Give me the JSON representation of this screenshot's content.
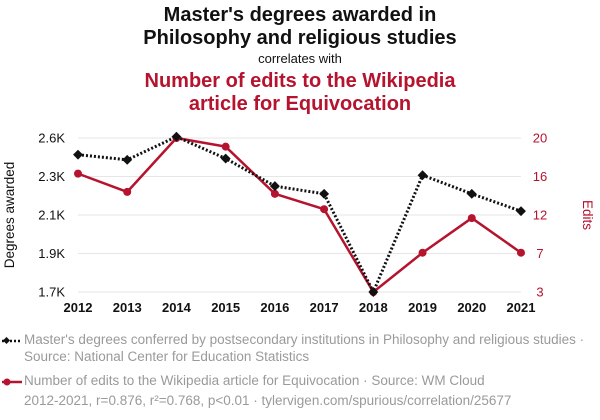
{
  "header": {
    "title_line1": "Master's degrees awarded in",
    "title_line2": "Philosophy and religious studies",
    "correlates": "correlates with",
    "title2_line1": "Number of edits to the Wikipedia",
    "title2_line2": "article for Equivocation"
  },
  "legend": {
    "series1": "Master's degrees conferred by postsecondary institutions in Philosophy and religious studies · Source: National Center for Education Statistics",
    "series2": "Number of edits to the Wikipedia article for Equivocation · Source: WM Cloud"
  },
  "footer": "2012-2021, r=0.876, r²=0.768, p<0.01 · tylervigen.com/spurious/correlation/25677",
  "colors": {
    "series1": "#111111",
    "series2": "#b5132e"
  },
  "chart_data": {
    "type": "line",
    "x": [
      2012,
      2013,
      2014,
      2015,
      2016,
      2017,
      2018,
      2019,
      2020,
      2021
    ],
    "y_left": {
      "label": "Degrees awarded",
      "ticks": [
        1700,
        1900,
        2100,
        2300,
        2600
      ],
      "tick_labels": [
        "1.7K",
        "1.9K",
        "2.1K",
        "2.3K",
        "2.6K"
      ]
    },
    "y_right": {
      "label": "Edits",
      "ticks": [
        3,
        7,
        12,
        16,
        20
      ],
      "tick_labels": [
        "3",
        "7",
        "12",
        "16",
        "20"
      ]
    },
    "series": [
      {
        "axis": "left",
        "style": "dotted",
        "marker": "diamond",
        "values": [
          2470,
          2430,
          2610,
          2440,
          2250,
          2210,
          1700,
          2310,
          2210,
          2120
        ]
      },
      {
        "axis": "right",
        "style": "solid",
        "marker": "circle",
        "values": [
          16.3,
          14.4,
          20,
          19.1,
          14.2,
          12.6,
          3,
          7.1,
          11.6,
          7.1
        ]
      }
    ],
    "grid": true
  }
}
